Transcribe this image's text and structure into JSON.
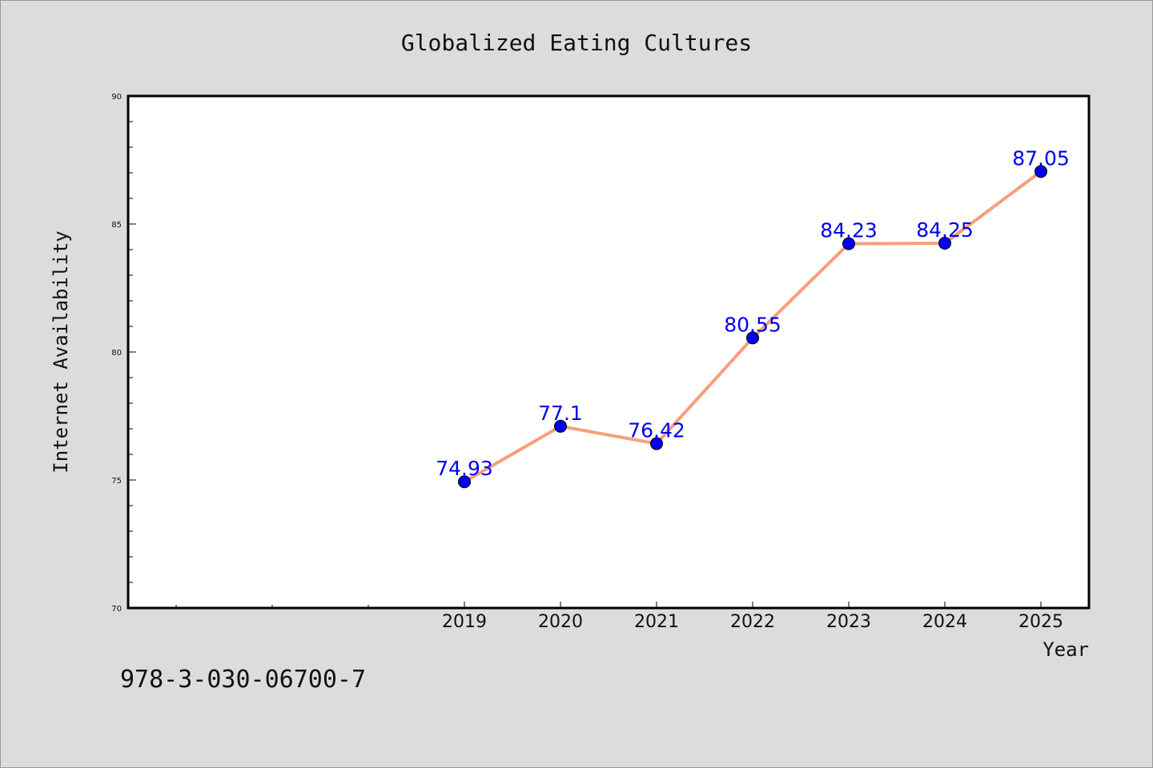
{
  "isbn": "978-3-030-06700-7",
  "colors": {
    "background": "#dcdcdc",
    "plot_background": "#ffffff",
    "line": "#f4a07a",
    "marker": "#0000ee",
    "label": "#0000ee"
  },
  "chart_data": {
    "type": "line",
    "title": "Globalized Eating Cultures",
    "xlabel": "Year",
    "ylabel": "Internet Availability",
    "categories": [
      "2019",
      "2020",
      "2021",
      "2022",
      "2023",
      "2024",
      "2025"
    ],
    "values": [
      74.93,
      77.1,
      76.42,
      80.55,
      84.23,
      84.25,
      87.05
    ],
    "data_labels": [
      "74.93",
      "77.1",
      "76.42",
      "80.55",
      "84.23",
      "84.25",
      "87.05"
    ],
    "yticks": [
      "70",
      "75",
      "80",
      "85",
      "90"
    ],
    "ylim": [
      70,
      90
    ],
    "grid": false,
    "legend": "none"
  }
}
